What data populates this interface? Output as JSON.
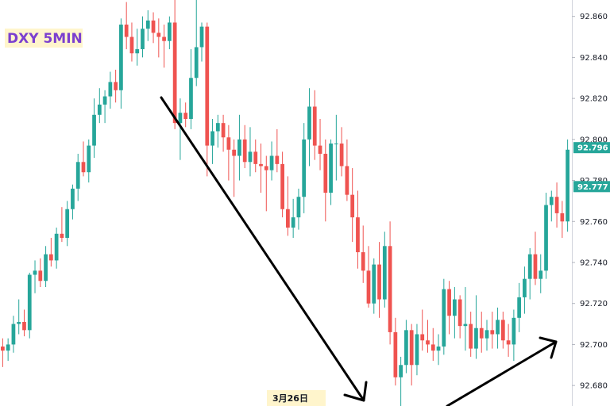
{
  "title": "DXY 5MIN",
  "colors": {
    "title": "#7b3fcf",
    "title_bg": "#fff5cc",
    "up": "#26a69a",
    "down": "#ef5350",
    "axis": "#d1d4dc",
    "arrow": "#000000",
    "tag": "#26a69a"
  },
  "chart_data": {
    "type": "candlestick",
    "title": "DXY 5MIN",
    "ylim": [
      92.67,
      92.868
    ],
    "y_ticks": [
      "92.680",
      "92.700",
      "92.720",
      "92.740",
      "92.760",
      "92.780",
      "92.800",
      "92.820",
      "92.840",
      "92.860"
    ],
    "price_tags": [
      "92.796",
      "92.777"
    ],
    "date_label": "3月26日",
    "candles": [
      [
        92.699,
        92.703,
        92.689,
        92.697
      ],
      [
        92.697,
        92.703,
        92.692,
        92.7
      ],
      [
        92.7,
        92.714,
        92.696,
        92.71
      ],
      [
        92.71,
        92.722,
        92.705,
        92.711
      ],
      [
        92.711,
        92.717,
        92.704,
        92.707
      ],
      [
        92.707,
        92.735,
        92.703,
        92.734
      ],
      [
        92.734,
        92.741,
        92.725,
        92.736
      ],
      [
        92.736,
        92.742,
        92.728,
        92.731
      ],
      [
        92.731,
        92.748,
        92.728,
        92.744
      ],
      [
        92.744,
        92.752,
        92.738,
        92.741
      ],
      [
        92.741,
        92.757,
        92.737,
        92.754
      ],
      [
        92.754,
        92.767,
        92.75,
        92.752
      ],
      [
        92.752,
        92.77,
        92.748,
        92.766
      ],
      [
        92.766,
        92.778,
        92.761,
        92.776
      ],
      [
        92.776,
        92.793,
        92.77,
        92.789
      ],
      [
        92.789,
        92.799,
        92.782,
        92.784
      ],
      [
        92.784,
        92.8,
        92.779,
        92.797
      ],
      [
        92.797,
        92.82,
        92.791,
        92.812
      ],
      [
        92.812,
        92.825,
        92.808,
        92.817
      ],
      [
        92.817,
        92.824,
        92.808,
        92.821
      ],
      [
        92.821,
        92.833,
        92.815,
        92.828
      ],
      [
        92.828,
        92.834,
        92.818,
        92.824
      ],
      [
        92.824,
        92.859,
        92.815,
        92.856
      ],
      [
        92.856,
        92.867,
        92.844,
        92.85
      ],
      [
        92.85,
        92.857,
        92.838,
        92.842
      ],
      [
        92.842,
        92.854,
        92.836,
        92.844
      ],
      [
        92.844,
        92.86,
        92.84,
        92.854
      ],
      [
        92.854,
        92.863,
        92.848,
        92.858
      ],
      [
        92.858,
        92.862,
        92.847,
        92.852
      ],
      [
        92.852,
        92.859,
        92.84,
        92.85
      ],
      [
        92.85,
        92.856,
        92.835,
        92.848
      ],
      [
        92.848,
        92.86,
        92.844,
        92.857
      ],
      [
        92.857,
        92.868,
        92.805,
        92.808
      ],
      [
        92.808,
        92.82,
        92.79,
        92.813
      ],
      [
        92.813,
        92.818,
        92.806,
        92.81
      ],
      [
        92.81,
        92.844,
        92.805,
        92.83
      ],
      [
        92.83,
        92.868,
        92.826,
        92.845
      ],
      [
        92.845,
        92.857,
        92.838,
        92.855
      ],
      [
        92.855,
        92.857,
        92.782,
        92.797
      ],
      [
        92.797,
        92.81,
        92.788,
        92.804
      ],
      [
        92.804,
        92.812,
        92.796,
        92.808
      ],
      [
        92.808,
        92.812,
        92.794,
        92.801
      ],
      [
        92.801,
        92.807,
        92.78,
        92.795
      ],
      [
        92.795,
        92.8,
        92.772,
        92.792
      ],
      [
        92.792,
        92.812,
        92.78,
        92.8
      ],
      [
        92.8,
        92.807,
        92.786,
        92.789
      ],
      [
        92.789,
        92.806,
        92.782,
        92.794
      ],
      [
        92.794,
        92.8,
        92.784,
        92.788
      ],
      [
        92.788,
        92.798,
        92.774,
        92.787
      ],
      [
        92.787,
        92.792,
        92.765,
        92.785
      ],
      [
        92.785,
        92.799,
        92.78,
        92.792
      ],
      [
        92.792,
        92.805,
        92.784,
        92.788
      ],
      [
        92.788,
        92.794,
        92.762,
        92.766
      ],
      [
        92.766,
        92.782,
        92.753,
        92.757
      ],
      [
        92.757,
        92.771,
        92.752,
        92.762
      ],
      [
        92.762,
        92.776,
        92.756,
        92.772
      ],
      [
        92.772,
        92.808,
        92.764,
        92.8
      ],
      [
        92.8,
        92.825,
        92.787,
        92.816
      ],
      [
        92.816,
        92.824,
        92.79,
        92.797
      ],
      [
        92.797,
        92.81,
        92.785,
        92.793
      ],
      [
        92.793,
        92.8,
        92.76,
        92.774
      ],
      [
        92.774,
        92.8,
        92.768,
        92.798
      ],
      [
        92.798,
        92.812,
        92.78,
        92.798
      ],
      [
        92.798,
        92.806,
        92.782,
        92.787
      ],
      [
        92.787,
        92.8,
        92.77,
        92.773
      ],
      [
        92.773,
        92.786,
        92.75,
        92.762
      ],
      [
        92.762,
        92.775,
        92.737,
        92.745
      ],
      [
        92.745,
        92.758,
        92.73,
        92.736
      ],
      [
        92.736,
        92.748,
        92.718,
        92.72
      ],
      [
        92.72,
        92.742,
        92.715,
        92.739
      ],
      [
        92.739,
        92.75,
        92.713,
        92.722
      ],
      [
        92.722,
        92.755,
        92.718,
        92.748
      ],
      [
        92.748,
        92.76,
        92.7,
        92.706
      ],
      [
        92.706,
        92.713,
        92.68,
        92.684
      ],
      [
        92.684,
        92.694,
        92.668,
        92.69
      ],
      [
        92.69,
        92.712,
        92.686,
        92.707
      ],
      [
        92.707,
        92.71,
        92.68,
        92.69
      ],
      [
        92.69,
        92.71,
        92.685,
        92.705
      ],
      [
        92.705,
        92.717,
        92.697,
        92.702
      ],
      [
        92.702,
        92.712,
        92.696,
        92.7
      ],
      [
        92.7,
        92.708,
        92.692,
        92.697
      ],
      [
        92.697,
        92.705,
        92.69,
        92.699
      ],
      [
        92.699,
        92.732,
        92.695,
        92.727
      ],
      [
        92.727,
        92.731,
        92.705,
        92.714
      ],
      [
        92.714,
        92.728,
        92.703,
        92.722
      ],
      [
        92.722,
        92.724,
        92.703,
        92.709
      ],
      [
        92.709,
        92.728,
        92.697,
        92.71
      ],
      [
        92.71,
        92.716,
        92.694,
        92.698
      ],
      [
        92.698,
        92.724,
        92.693,
        92.708
      ],
      [
        92.708,
        92.716,
        92.696,
        92.703
      ],
      [
        92.703,
        92.712,
        92.697,
        92.707
      ],
      [
        92.707,
        92.716,
        92.698,
        92.705
      ],
      [
        92.705,
        92.718,
        92.698,
        92.712
      ],
      [
        92.712,
        92.716,
        92.698,
        92.702
      ],
      [
        92.702,
        92.71,
        92.694,
        92.7
      ],
      [
        92.7,
        92.717,
        92.692,
        92.713
      ],
      [
        92.713,
        92.73,
        92.706,
        92.723
      ],
      [
        92.723,
        92.738,
        92.715,
        92.732
      ],
      [
        92.732,
        92.747,
        92.722,
        92.744
      ],
      [
        92.744,
        92.755,
        92.729,
        92.732
      ],
      [
        92.732,
        92.744,
        92.725,
        92.736
      ],
      [
        92.736,
        92.774,
        92.732,
        92.768
      ],
      [
        92.768,
        92.775,
        92.76,
        92.772
      ],
      [
        92.772,
        92.779,
        92.757,
        92.764
      ],
      [
        92.764,
        92.77,
        92.752,
        92.76
      ],
      [
        92.76,
        92.8,
        92.755,
        92.795
      ]
    ]
  }
}
